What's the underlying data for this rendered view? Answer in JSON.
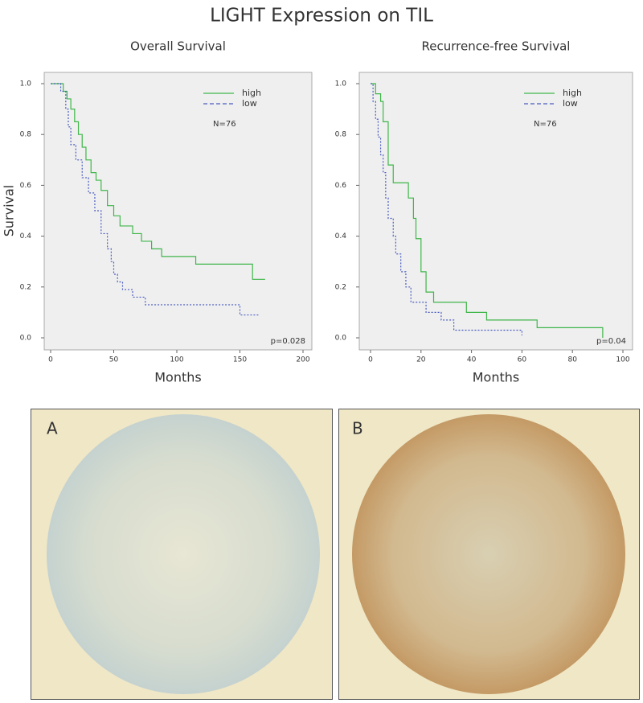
{
  "title": "LIGHT Expression on TIL",
  "panels": [
    {
      "label": "A"
    },
    {
      "label": "B"
    }
  ],
  "chart_data": [
    {
      "type": "step",
      "title": "Overall Survival",
      "xlabel": "Months",
      "ylabel": "Survival",
      "n_label": "N=76",
      "p_label": "p=0.028",
      "xlim": [
        0,
        200
      ],
      "xticks": [
        0,
        50,
        100,
        150,
        200
      ],
      "ylim": [
        0,
        1
      ],
      "yticks": [
        {
          "value": 0,
          "label": "0.0"
        },
        {
          "value": 0.2,
          "label": "0.2"
        },
        {
          "value": 0.4,
          "label": "0.4"
        },
        {
          "value": 0.6,
          "label": "0.6"
        },
        {
          "value": 0.8,
          "label": "0.8"
        },
        {
          "value": 1,
          "label": "1.0"
        }
      ],
      "legend": "upper right",
      "series": [
        {
          "name": "high",
          "color": "#3fb64a",
          "dash": false,
          "x": [
            0,
            10,
            13,
            16,
            19,
            22,
            25,
            28,
            32,
            36,
            40,
            45,
            50,
            55,
            65,
            72,
            80,
            88,
            95,
            115,
            135,
            160,
            170
          ],
          "values": [
            1.0,
            0.97,
            0.94,
            0.9,
            0.85,
            0.8,
            0.75,
            0.7,
            0.65,
            0.62,
            0.58,
            0.52,
            0.48,
            0.44,
            0.41,
            0.38,
            0.35,
            0.32,
            0.32,
            0.29,
            0.29,
            0.23,
            0.23
          ]
        },
        {
          "name": "low",
          "color": "#4a5cc0",
          "dash": true,
          "x": [
            0,
            8,
            12,
            14,
            16,
            20,
            25,
            30,
            35,
            40,
            45,
            48,
            50,
            53,
            57,
            65,
            75,
            90,
            115,
            150,
            165
          ],
          "values": [
            1.0,
            0.97,
            0.9,
            0.83,
            0.76,
            0.7,
            0.63,
            0.57,
            0.5,
            0.41,
            0.35,
            0.3,
            0.25,
            0.22,
            0.19,
            0.16,
            0.13,
            0.13,
            0.13,
            0.09,
            0.09
          ]
        }
      ]
    },
    {
      "type": "step",
      "title": "Recurrence-free Survival",
      "xlabel": "Months",
      "n_label": "N=76",
      "p_label": "p=0.04",
      "xlim": [
        0,
        100
      ],
      "xticks": [
        0,
        20,
        40,
        60,
        80,
        100
      ],
      "ylim": [
        0,
        1
      ],
      "yticks": [
        {
          "value": 0,
          "label": "0.0"
        },
        {
          "value": 0.2,
          "label": "0.2"
        },
        {
          "value": 0.4,
          "label": "0.4"
        },
        {
          "value": 0.6,
          "label": "0.6"
        },
        {
          "value": 0.8,
          "label": "0.8"
        },
        {
          "value": 1,
          "label": "1.0"
        }
      ],
      "legend": "upper right",
      "series": [
        {
          "name": "high",
          "color": "#3fb64a",
          "dash": false,
          "x": [
            0,
            2,
            4,
            5,
            7,
            9,
            12,
            15,
            17,
            18,
            20,
            22,
            25,
            30,
            38,
            46,
            56,
            66,
            92
          ],
          "values": [
            1.0,
            0.96,
            0.93,
            0.85,
            0.68,
            0.61,
            0.61,
            0.55,
            0.47,
            0.39,
            0.26,
            0.18,
            0.14,
            0.14,
            0.1,
            0.07,
            0.07,
            0.04,
            0.0
          ]
        },
        {
          "name": "low",
          "color": "#4a5cc0",
          "dash": true,
          "x": [
            0,
            1,
            2,
            3,
            4,
            5,
            6,
            7,
            9,
            10,
            12,
            14,
            16,
            18,
            22,
            28,
            33,
            60
          ],
          "values": [
            1.0,
            0.93,
            0.86,
            0.79,
            0.72,
            0.65,
            0.55,
            0.47,
            0.4,
            0.33,
            0.26,
            0.2,
            0.14,
            0.14,
            0.1,
            0.07,
            0.03,
            0.01
          ]
        }
      ]
    }
  ]
}
